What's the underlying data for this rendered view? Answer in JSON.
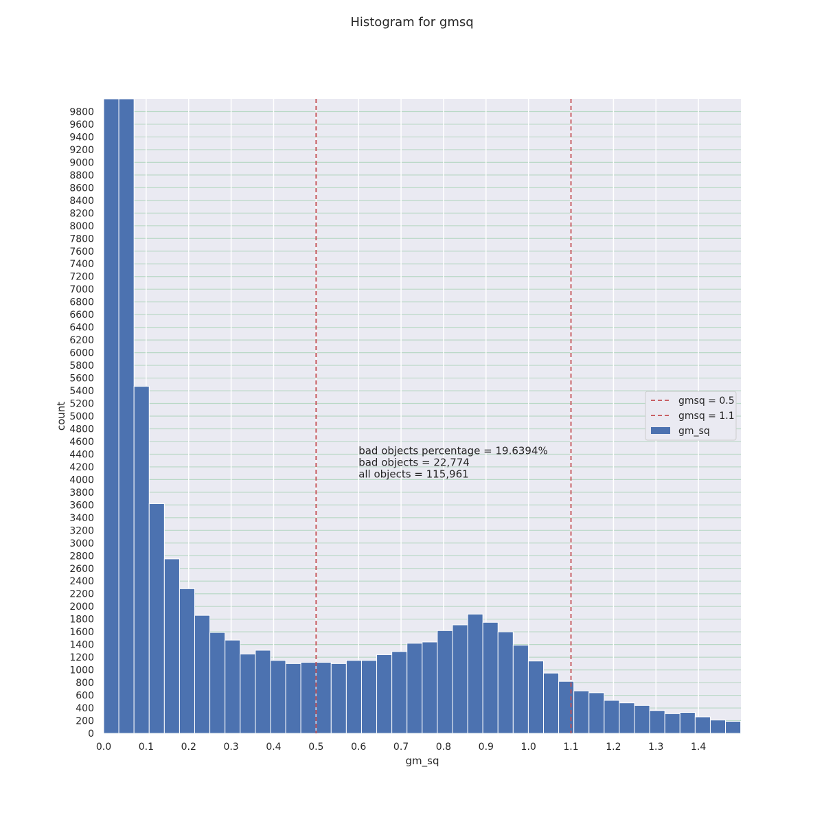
{
  "chart_data": {
    "type": "bar",
    "title": "Histogram for gmsq",
    "xlabel": "gm_sq",
    "ylabel": "count",
    "xlim": [
      0,
      1.5
    ],
    "ylim": [
      0,
      10000
    ],
    "x_ticks": [
      "0.0",
      "0.1",
      "0.2",
      "0.3",
      "0.4",
      "0.5",
      "0.6",
      "0.7",
      "0.8",
      "0.9",
      "1.0",
      "1.1",
      "1.2",
      "1.3",
      "1.4"
    ],
    "y_ticks": [
      "0",
      "200",
      "400",
      "600",
      "800",
      "1000",
      "1200",
      "1400",
      "1600",
      "1800",
      "2000",
      "2200",
      "2400",
      "2600",
      "2800",
      "3000",
      "3200",
      "3400",
      "3600",
      "3800",
      "4000",
      "4200",
      "4400",
      "4600",
      "4800",
      "5000",
      "5200",
      "5400",
      "5600",
      "5800",
      "6000",
      "6200",
      "6400",
      "6600",
      "6800",
      "7000",
      "7200",
      "7400",
      "7600",
      "7800",
      "8000",
      "8200",
      "8400",
      "8600",
      "8800",
      "9000",
      "9200",
      "9400",
      "9600",
      "9800"
    ],
    "bin_width": 0.0357,
    "series": [
      {
        "name": "gm_sq",
        "color": "#4c72b0",
        "values": [
          10000,
          10000,
          5470,
          3620,
          2750,
          2280,
          1860,
          1590,
          1470,
          1250,
          1310,
          1150,
          1100,
          1120,
          1120,
          1100,
          1150,
          1150,
          1240,
          1290,
          1420,
          1440,
          1620,
          1710,
          1880,
          1750,
          1600,
          1390,
          1140,
          950,
          820,
          670,
          640,
          520,
          480,
          440,
          360,
          310,
          330,
          260,
          210,
          190
        ]
      }
    ],
    "vlines": [
      {
        "label": "gmsq = 0.5",
        "x": 0.5,
        "color": "#c44e52"
      },
      {
        "label": "gmsq = 1.1",
        "x": 1.1,
        "color": "#c44e52"
      }
    ],
    "annotation": [
      "bad objects percentage = 19.6394%",
      "bad objects = 22,774",
      "all objects = 115,961"
    ],
    "annotation_x": 0.6,
    "annotation_y": 4400,
    "legend_placement": "right"
  }
}
